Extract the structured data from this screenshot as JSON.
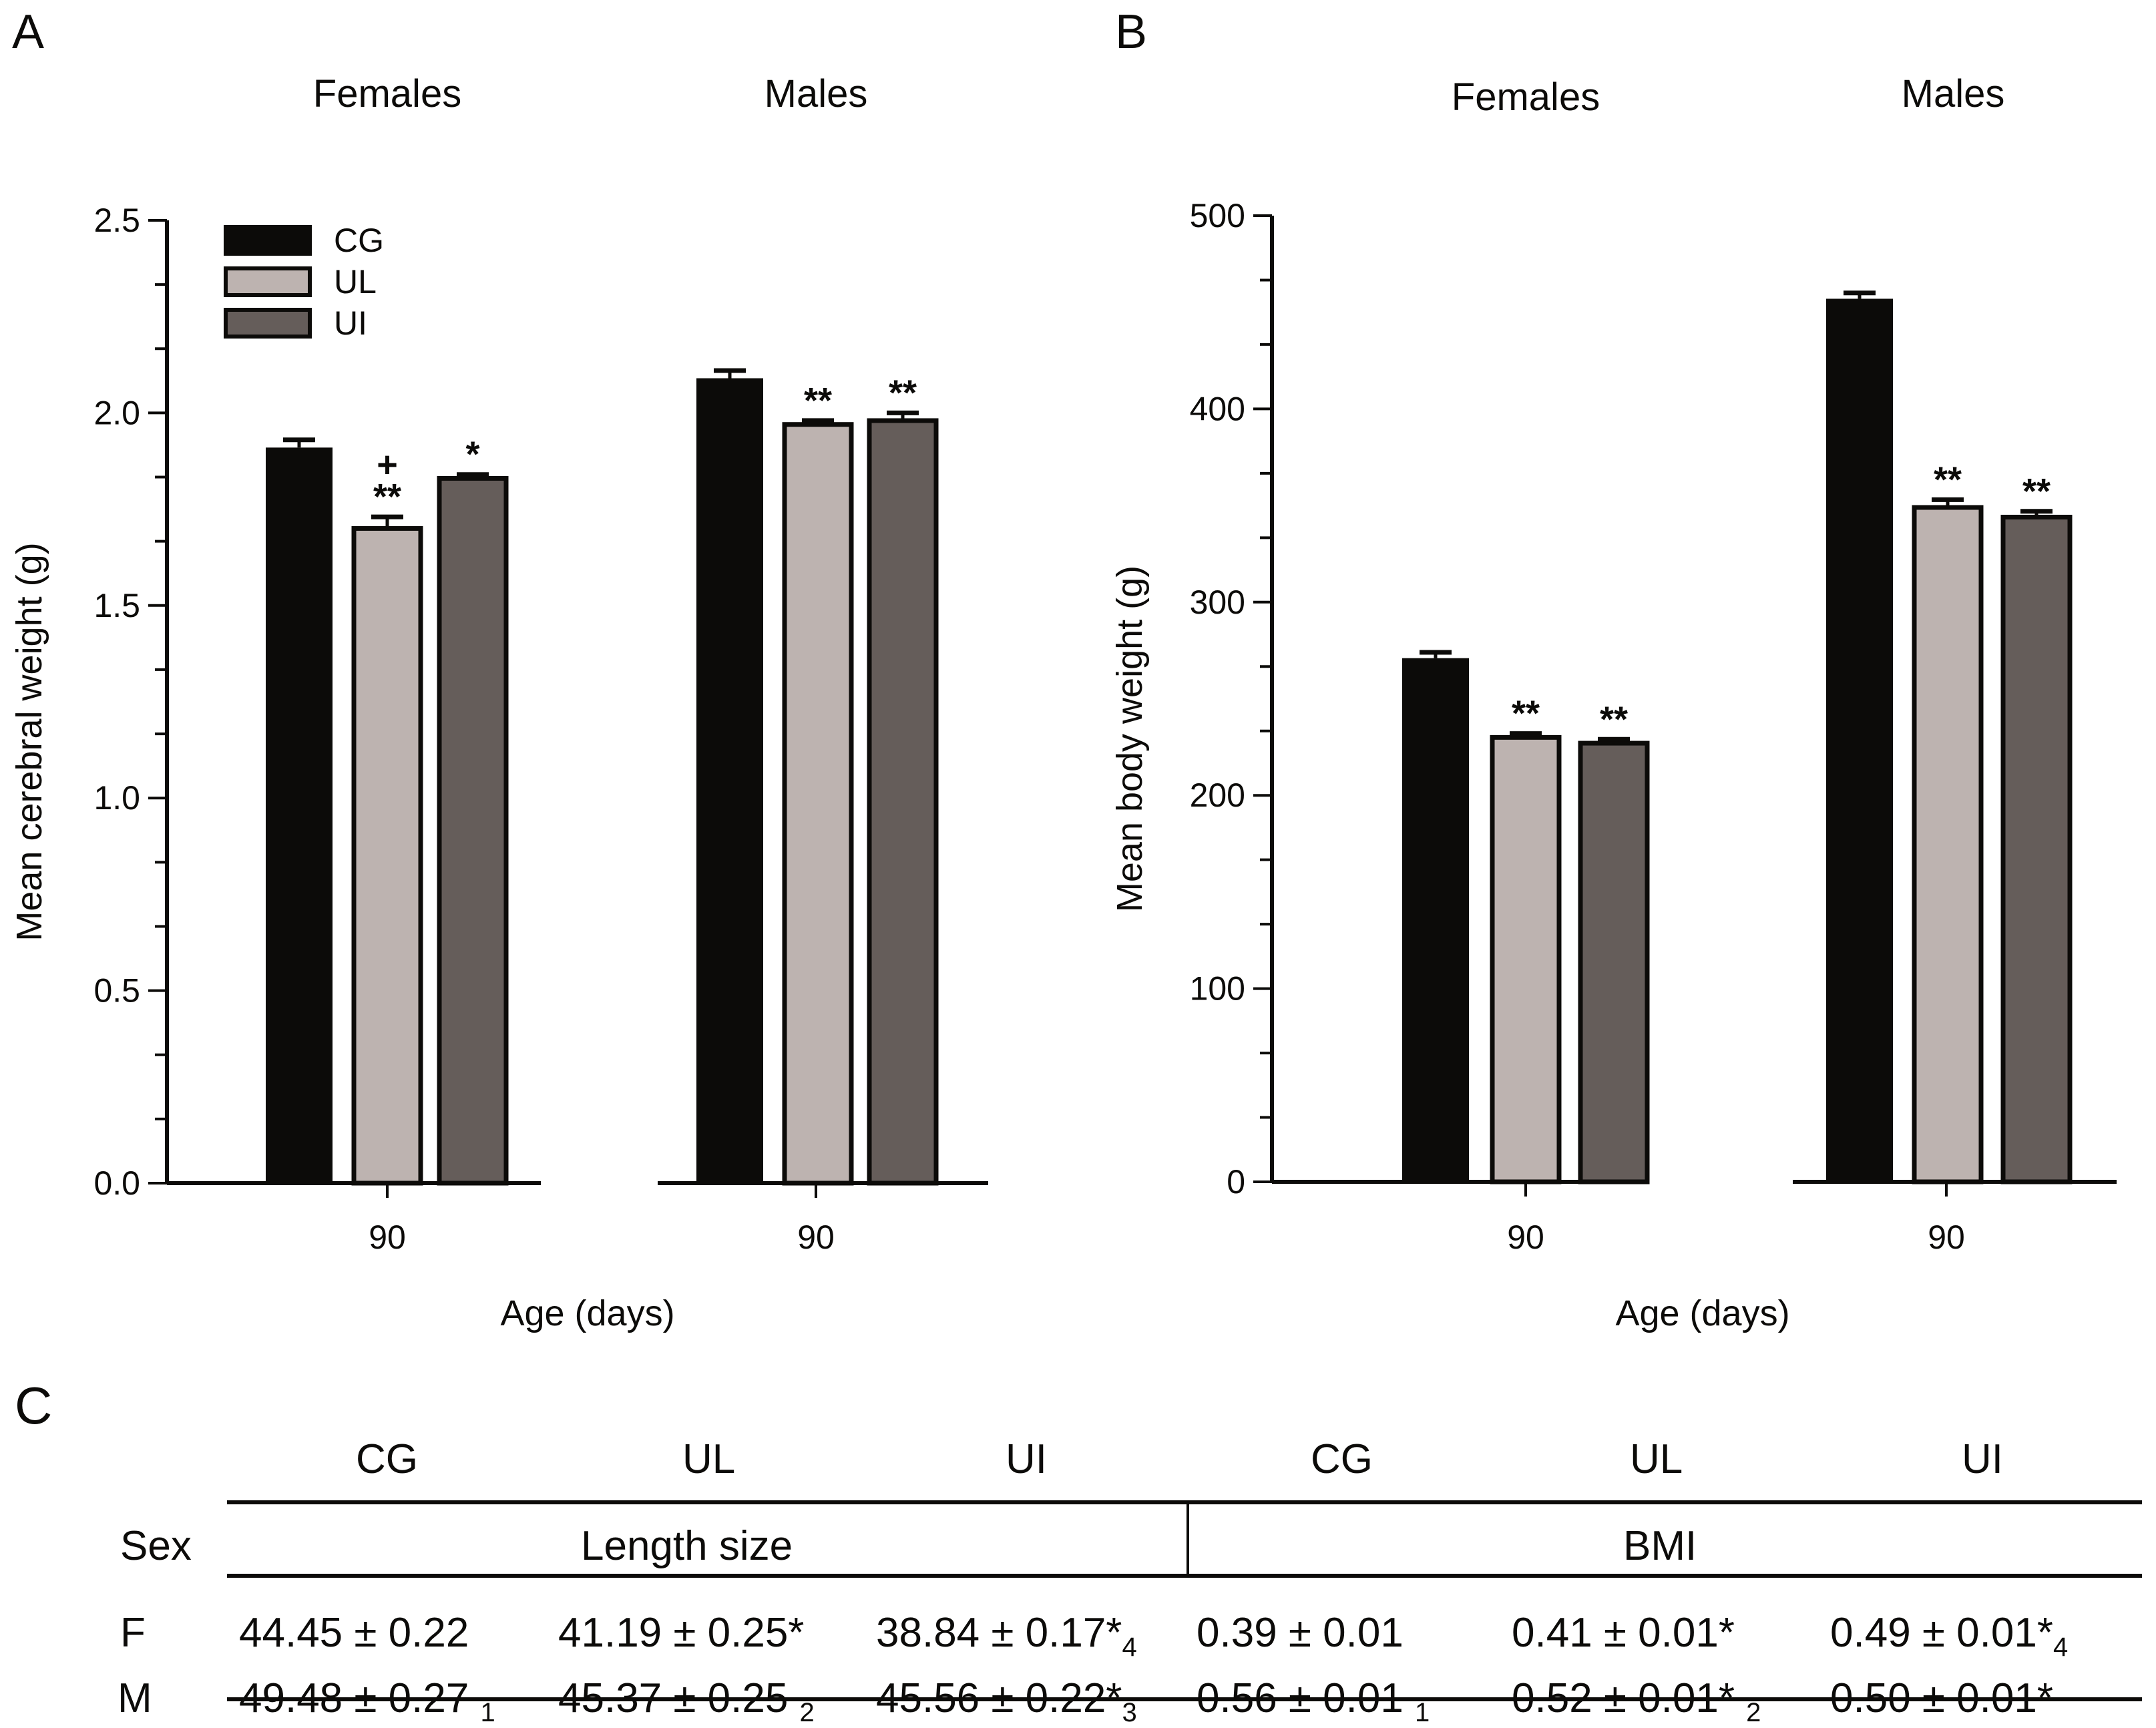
{
  "colors": {
    "CG": "#0c0b09",
    "UL": "#bdb3b0",
    "UI": "#655d5a",
    "outline": "#0c0b09"
  },
  "chart_data": [
    {
      "panel": "A",
      "type": "bar",
      "ylabel": "Mean cerebral weight (g)",
      "xlabel": "Age (days)",
      "ylim": [
        0,
        2.5
      ],
      "yticks": [
        "0.0",
        "0.5",
        "1.0",
        "1.5",
        "2.0",
        "2.5"
      ],
      "ytick_values": [
        0,
        0.5,
        1.0,
        1.5,
        2.0,
        2.5
      ],
      "minor_ticks_per_major": 2,
      "legend": [
        "CG",
        "UL",
        "UI"
      ],
      "legend_position": "top-left",
      "groups": [
        {
          "title": "Females",
          "xtick": "90",
          "bars": [
            {
              "series": "CG",
              "value": 1.91,
              "error": 0.02,
              "annotation": ""
            },
            {
              "series": "UL",
              "value": 1.7,
              "error": 0.03,
              "annotation": "**",
              "annotation2": "+"
            },
            {
              "series": "UI",
              "value": 1.83,
              "error": 0.01,
              "annotation": "*"
            }
          ]
        },
        {
          "title": "Males",
          "xtick": "90",
          "bars": [
            {
              "series": "CG",
              "value": 2.09,
              "error": 0.02,
              "annotation": ""
            },
            {
              "series": "UL",
              "value": 1.97,
              "error": 0.01,
              "annotation": "**"
            },
            {
              "series": "UI",
              "value": 1.98,
              "error": 0.02,
              "annotation": "**"
            }
          ]
        }
      ]
    },
    {
      "panel": "B",
      "type": "bar",
      "ylabel": "Mean body weight (g)",
      "xlabel": "Age (days)",
      "ylim": [
        0,
        500
      ],
      "yticks": [
        "0",
        "100",
        "200",
        "300",
        "400",
        "500"
      ],
      "ytick_values": [
        0,
        100,
        200,
        300,
        400,
        500
      ],
      "minor_ticks_per_major": 2,
      "groups": [
        {
          "title": "Females",
          "xtick": "90",
          "bars": [
            {
              "series": "CG",
              "value": 271,
              "error": 3,
              "annotation": ""
            },
            {
              "series": "UL",
              "value": 230,
              "error": 2,
              "annotation": "**"
            },
            {
              "series": "UI",
              "value": 227,
              "error": 2,
              "annotation": "**"
            }
          ]
        },
        {
          "title": "Males",
          "xtick": "90",
          "bars": [
            {
              "series": "CG",
              "value": 457,
              "error": 3,
              "annotation": ""
            },
            {
              "series": "UL",
              "value": 349,
              "error": 4,
              "annotation": "**"
            },
            {
              "series": "UI",
              "value": 344,
              "error": 3,
              "annotation": "**"
            }
          ]
        }
      ]
    }
  ],
  "table": {
    "panel": "C",
    "column_headers": [
      "CG",
      "UL",
      "UI",
      "CG",
      "UL",
      "UI"
    ],
    "row_header_label": "Sex",
    "section_headers": [
      "Length size",
      "BMI"
    ],
    "rows": [
      {
        "sex": "F",
        "cells": [
          {
            "text": "44.45 ± 0.22",
            "sub": ""
          },
          {
            "text": "41.19 ± 0.25*",
            "sub": ""
          },
          {
            "text": "38.84 ± 0.17*",
            "sub": "4"
          },
          {
            "text": "0.39 ± 0.01",
            "sub": ""
          },
          {
            "text": "0.41 ± 0.01*",
            "sub": ""
          },
          {
            "text": "0.49 ± 0.01*",
            "sub": "4"
          }
        ]
      },
      {
        "sex": "M",
        "cells": [
          {
            "text": "49.48 ± 0.27 ",
            "sub": "1"
          },
          {
            "text": "45.37 ± 0.25 ",
            "sub": "2"
          },
          {
            "text": "45.56 ± 0.22*",
            "sub": "3"
          },
          {
            "text": "0.56 ± 0.01 ",
            "sub": "1"
          },
          {
            "text": "0.52 ± 0.01* ",
            "sub": "2"
          },
          {
            "text": "0.50 ± 0.01*",
            "sub": ""
          }
        ]
      }
    ]
  }
}
